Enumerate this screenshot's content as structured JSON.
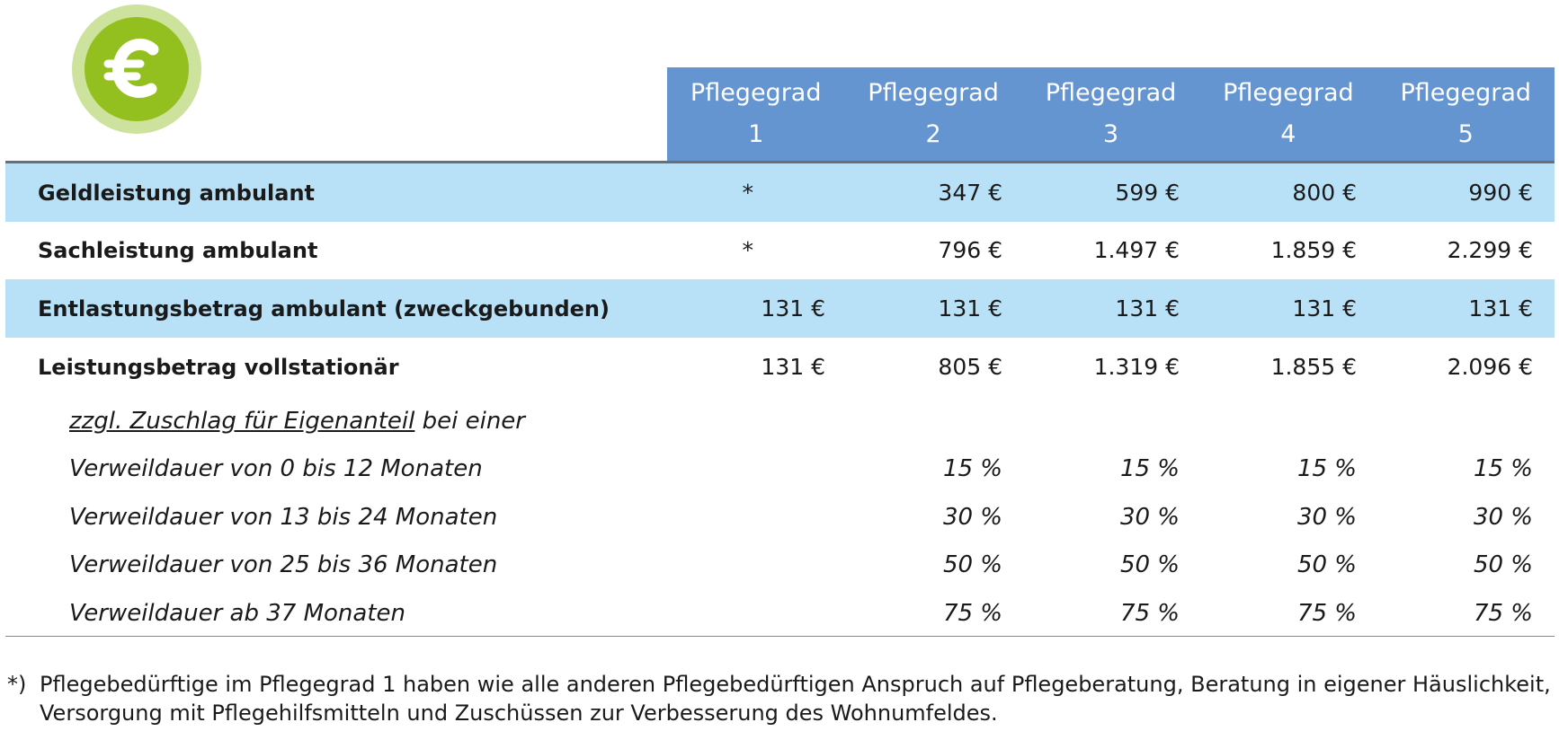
{
  "logo": {
    "icon": "euro-icon",
    "colors": {
      "outer": "#cde29c",
      "inner": "#93c01f"
    }
  },
  "header": {
    "columns": [
      {
        "label": "Pflegegrad",
        "num": "1"
      },
      {
        "label": "Pflegegrad",
        "num": "2"
      },
      {
        "label": "Pflegegrad",
        "num": "3"
      },
      {
        "label": "Pflegegrad",
        "num": "4"
      },
      {
        "label": "Pflegegrad",
        "num": "5"
      }
    ]
  },
  "rows": [
    {
      "label": "Geldleistung ambulant",
      "values": [
        "*",
        "347 €",
        "599 €",
        "800 €",
        "990 €"
      ]
    },
    {
      "label": "Sachleistung ambulant",
      "values": [
        "*",
        "796 €",
        "1.497 €",
        "1.859 €",
        "2.299 €"
      ]
    },
    {
      "label": "Entlastungsbetrag ambulant (zweckgebunden)",
      "values": [
        "131 €",
        "131 €",
        "131 €",
        "131 €",
        "131 €"
      ]
    },
    {
      "label": "Leistungsbetrag vollstationär",
      "values": [
        "131 €",
        "805 €",
        "1.319 €",
        "1.855 €",
        "2.096 €"
      ]
    }
  ],
  "surcharge": {
    "intro_underlined": "zzgl. Zuschlag für Eigenanteil",
    "intro_rest": " bei einer",
    "rows": [
      {
        "label": "Verweildauer von 0 bis 12 Monaten",
        "values": [
          "15 %",
          "15 %",
          "15 %",
          "15 %"
        ]
      },
      {
        "label": "Verweildauer von 13 bis 24 Monaten",
        "values": [
          "30 %",
          "30 %",
          "30 %",
          "30 %"
        ]
      },
      {
        "label": "Verweildauer von 25 bis 36 Monaten",
        "values": [
          "50 %",
          "50 %",
          "50 %",
          "50 %"
        ]
      },
      {
        "label": "Verweildauer ab 37 Monaten",
        "values": [
          "75 %",
          "75 %",
          "75 %",
          "75 %"
        ]
      }
    ]
  },
  "footnote": {
    "marker": "*)",
    "text": "Pflegebedürftige im Pflegegrad 1 haben wie alle anderen Pflegebedürftigen Anspruch auf Pflegeberatung, Beratung in eigener Häuslichkeit, Versorgung mit Pflegehilfsmitteln und Zuschüssen zur Verbesserung des Wohnumfeldes."
  },
  "colors": {
    "header": "#6495d1",
    "row_highlight": "#b8e0f6"
  }
}
